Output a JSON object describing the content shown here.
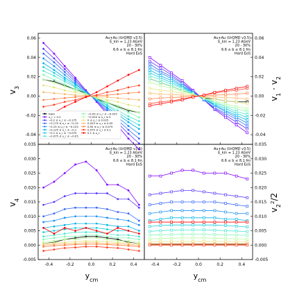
{
  "chart_data": [
    {
      "id": "v3",
      "type": "line",
      "ylabel": "v3",
      "ylabel_main": "v",
      "ylabel_sub": "3",
      "xlabel": "",
      "xlim": [
        -0.5,
        0.5
      ],
      "ylim": [
        -0.05,
        0.065
      ],
      "yticks": [
        "-0.04",
        "-0.02",
        "0.00",
        "0.02",
        "0.04",
        "0.06"
      ],
      "ytick_values": [
        -0.04,
        -0.02,
        0.0,
        0.02,
        0.04,
        0.06
      ],
      "annotation": [
        "Au+Au (UrQMD v3.5)",
        "E_kin = 1.23 AGeV",
        "20 - 30%",
        "6.6 ≤ b ≤ 8.1 fm",
        "Hard EoS"
      ],
      "grid": false
    },
    {
      "id": "v1v2",
      "type": "line",
      "ylabel": "v1 · v2",
      "ylabel_main": "v",
      "ylabel_sub": "1",
      "ylabel_mid": " · v",
      "ylabel_sub2": "2",
      "xlabel": "",
      "xlim": [
        -0.5,
        0.5
      ],
      "ylim": [
        -0.05,
        0.065
      ],
      "yticks": [
        "-0.04",
        "-0.02",
        "0.00",
        "0.02",
        "0.04",
        "0.06"
      ],
      "ytick_values": [
        -0.04,
        -0.02,
        0.0,
        0.02,
        0.04,
        0.06
      ],
      "annotation": [
        "Au+Au (UrQMD v3.5)",
        "E_kin = 1.23 AGeV",
        "20 - 30%",
        "6.6 ≤ b ≤ 8.1 fm",
        "Hard EoS"
      ],
      "grid": false
    },
    {
      "id": "v4",
      "type": "line",
      "ylabel": "v4",
      "ylabel_main": "v",
      "ylabel_sub": "4",
      "xlabel": "ycm",
      "xlabel_main": "y",
      "xlabel_sub": "cm",
      "xlim": [
        -0.5,
        0.5
      ],
      "ylim": [
        -0.005,
        0.035
      ],
      "yticks": [
        "-0.005",
        "0.000",
        "0.005",
        "0.010",
        "0.015",
        "0.020",
        "0.025",
        "0.030",
        "0.035"
      ],
      "ytick_values": [
        -0.005,
        0.0,
        0.005,
        0.01,
        0.015,
        0.02,
        0.025,
        0.03,
        0.035
      ],
      "xticks": [
        "-0.4",
        "-0.2",
        "0.0",
        "0.2",
        "0.4"
      ],
      "xtick_values": [
        -0.4,
        -0.2,
        0.0,
        0.2,
        0.4
      ],
      "annotation": [
        "Au+Au (UrQMD v3.5)",
        "E_kin = 1.23 AGeV",
        "20 - 30%",
        "6.6 ≤ b ≤ 8.1 fm",
        "Hard EoS"
      ],
      "grid": false
    },
    {
      "id": "v2sq",
      "type": "line",
      "ylabel": "v2²/2",
      "ylabel_main": "v",
      "ylabel_sub": "2",
      "ylabel_sup": "2",
      "ylabel_tail": "/2",
      "xlabel": "ycm",
      "xlabel_main": "y",
      "xlabel_sub": "cm",
      "xlim": [
        -0.5,
        0.5
      ],
      "ylim": [
        -0.005,
        0.035
      ],
      "yticks": [
        "-0.005",
        "0.000",
        "0.005",
        "0.010",
        "0.015",
        "0.020",
        "0.025",
        "0.030",
        "0.035"
      ],
      "ytick_values": [
        -0.005,
        0.0,
        0.005,
        0.01,
        0.015,
        0.02,
        0.025,
        0.03,
        0.035
      ],
      "xticks": [
        "-0.4",
        "-0.2",
        "0.0",
        "0.2",
        "0.4"
      ],
      "xtick_values": [
        -0.4,
        -0.2,
        0.0,
        0.2,
        0.4
      ],
      "annotation": [
        "Au+Au (UrQMD v3.5)",
        "E_kin = 1.23 AGeV",
        "20 - 30%",
        "6.6 ≤ b ≤ 8.1 fm",
        "Hard EoS"
      ],
      "grid": false
    }
  ],
  "x_values": [
    -0.45,
    -0.35,
    -0.25,
    -0.15,
    -0.05,
    0.05,
    0.15,
    0.25,
    0.35,
    0.45
  ],
  "series": [
    {
      "name": "total",
      "color": "#000000",
      "v3": [
        0.017,
        0.015,
        0.011,
        0.007,
        0.003,
        -0.003,
        -0.007,
        -0.011,
        -0.015,
        -0.017
      ],
      "v1v2": [
        0.018,
        0.014,
        0.01,
        0.006,
        0.002,
        -0.002,
        -0.003,
        -0.005,
        -0.006,
        -0.006
      ],
      "v4": [
        0.0005,
        0.001,
        0.002,
        0.0025,
        0.003,
        0.003,
        0.0025,
        0.002,
        0.001,
        0.0005
      ],
      "v2sq": [
        0.0003,
        0.0003,
        0.0003,
        0.0003,
        0.0003,
        0.0003,
        0.0003,
        0.0003,
        0.0003,
        0.0003
      ]
    },
    {
      "name": "u_r = 0.2",
      "color": "#8000ff",
      "v3": [
        0.055,
        0.044,
        0.031,
        0.019,
        0.006,
        -0.006,
        -0.019,
        -0.031,
        -0.044,
        -0.055
      ],
      "v1v2": [
        0.04,
        0.032,
        0.024,
        0.016,
        0.006,
        -0.004,
        -0.014,
        -0.022,
        -0.03,
        -0.038
      ],
      "v4": [
        0.02,
        0.022,
        0.025,
        0.028,
        0.029,
        0.026,
        0.021,
        0.021,
        0.019,
        0.014
      ],
      "v2sq": [
        0.024,
        0.024,
        0.025,
        0.026,
        0.026,
        0.025,
        0.025,
        0.025,
        0.024,
        0.023
      ]
    },
    {
      "name": "−0.2 ≤ u_r ≤ −0.175",
      "color": "#5a35fd",
      "v3": [
        0.049,
        0.039,
        0.028,
        0.017,
        0.005,
        -0.005,
        -0.017,
        -0.028,
        -0.039,
        -0.049
      ],
      "v1v2": [
        0.036,
        0.029,
        0.022,
        0.014,
        0.005,
        -0.004,
        -0.013,
        -0.02,
        -0.027,
        -0.034
      ],
      "v4": [
        0.014,
        0.015,
        0.017,
        0.018,
        0.018,
        0.018,
        0.018,
        0.016,
        0.016,
        0.013
      ],
      "v2sq": [
        0.0175,
        0.018,
        0.0185,
        0.019,
        0.019,
        0.0185,
        0.018,
        0.0175,
        0.017,
        0.0165
      ]
    },
    {
      "name": "−0.175 ≤ u_r ≤ −0.15",
      "color": "#3465f9",
      "v3": [
        0.044,
        0.035,
        0.025,
        0.015,
        0.005,
        -0.005,
        -0.015,
        -0.025,
        -0.035,
        -0.044
      ],
      "v1v2": [
        0.033,
        0.026,
        0.02,
        0.013,
        0.004,
        -0.004,
        -0.012,
        -0.018,
        -0.024,
        -0.031
      ],
      "v4": [
        0.01,
        0.011,
        0.0125,
        0.013,
        0.013,
        0.013,
        0.0125,
        0.0115,
        0.011,
        0.0085
      ],
      "v2sq": [
        0.014,
        0.0145,
        0.015,
        0.015,
        0.015,
        0.015,
        0.015,
        0.0145,
        0.014,
        0.0135
      ]
    },
    {
      "name": "−0.15 ≤ u_r ≤ −0.125",
      "color": "#1c8ef3",
      "v3": [
        0.039,
        0.031,
        0.022,
        0.013,
        0.004,
        -0.004,
        -0.013,
        -0.022,
        -0.031,
        -0.039
      ],
      "v1v2": [
        0.03,
        0.024,
        0.018,
        0.011,
        0.004,
        -0.003,
        -0.01,
        -0.016,
        -0.022,
        -0.028
      ],
      "v4": [
        0.008,
        0.0085,
        0.0095,
        0.01,
        0.01,
        0.01,
        0.0095,
        0.009,
        0.0085,
        0.007
      ],
      "v2sq": [
        0.011,
        0.0115,
        0.012,
        0.012,
        0.012,
        0.012,
        0.012,
        0.0115,
        0.011,
        0.011
      ]
    },
    {
      "name": "−0.125 ≤ u_r ≤ −0.1",
      "color": "#04b3e9",
      "v3": [
        0.034,
        0.027,
        0.019,
        0.012,
        0.004,
        -0.004,
        -0.012,
        -0.019,
        -0.027,
        -0.034
      ],
      "v1v2": [
        0.027,
        0.021,
        0.016,
        0.01,
        0.003,
        -0.003,
        -0.009,
        -0.015,
        -0.02,
        -0.025
      ],
      "v4": [
        0.006,
        0.0065,
        0.007,
        0.0075,
        0.0075,
        0.0075,
        0.007,
        0.0065,
        0.0065,
        0.005
      ],
      "v2sq": [
        0.0085,
        0.009,
        0.0095,
        0.0095,
        0.0095,
        0.0095,
        0.0095,
        0.009,
        0.009,
        0.0085
      ]
    },
    {
      "name": "−0.1 ≤ u_r ≤ −0.075",
      "color": "#18cde0",
      "v3": [
        0.03,
        0.024,
        0.017,
        0.01,
        0.003,
        -0.003,
        -0.01,
        -0.017,
        -0.024,
        -0.03
      ],
      "v1v2": [
        0.024,
        0.019,
        0.014,
        0.009,
        0.003,
        -0.003,
        -0.008,
        -0.013,
        -0.018,
        -0.022
      ],
      "v4": [
        0.0045,
        0.005,
        0.0055,
        0.006,
        0.006,
        0.006,
        0.0055,
        0.005,
        0.005,
        0.004
      ],
      "v2sq": [
        0.0065,
        0.0068,
        0.007,
        0.007,
        0.007,
        0.007,
        0.007,
        0.0068,
        0.0066,
        0.0063
      ]
    },
    {
      "name": "−0.075 ≤ u_r ≤ −0.05",
      "color": "#4ce4cf",
      "v3": [
        0.026,
        0.021,
        0.015,
        0.009,
        0.003,
        -0.003,
        -0.009,
        -0.015,
        -0.021,
        -0.026
      ],
      "v1v2": [
        0.021,
        0.017,
        0.012,
        0.008,
        0.002,
        -0.002,
        -0.007,
        -0.011,
        -0.016,
        -0.019
      ],
      "v4": [
        0.003,
        0.0035,
        0.004,
        0.0045,
        0.0045,
        0.0045,
        0.004,
        0.0035,
        0.0035,
        0.003
      ],
      "v2sq": [
        0.0048,
        0.005,
        0.0052,
        0.0053,
        0.0053,
        0.0053,
        0.0052,
        0.005,
        0.0049,
        0.0047
      ]
    },
    {
      "name": "−0.05 ≤ u_r ≤ −0.025",
      "color": "#80f8b6",
      "v3": [
        0.022,
        0.017,
        0.012,
        0.007,
        0.002,
        -0.002,
        -0.007,
        -0.012,
        -0.017,
        -0.022
      ],
      "v1v2": [
        0.018,
        0.014,
        0.01,
        0.006,
        0.002,
        -0.002,
        -0.006,
        -0.01,
        -0.013,
        -0.016
      ],
      "v4": [
        0.002,
        0.0025,
        0.003,
        0.003,
        0.0035,
        0.0035,
        0.003,
        0.0025,
        0.0025,
        0.002
      ],
      "v2sq": [
        0.0035,
        0.0036,
        0.0037,
        0.0038,
        0.0038,
        0.0038,
        0.0037,
        0.0036,
        0.0035,
        0.0034
      ]
    },
    {
      "name": "−0.025 ≤ u_r ≤ 0",
      "color": "#b4fd9a",
      "v3": [
        0.017,
        0.014,
        0.01,
        0.006,
        0.002,
        -0.002,
        -0.006,
        -0.01,
        -0.014,
        -0.017
      ],
      "v1v2": [
        0.014,
        0.011,
        0.008,
        0.005,
        0.002,
        -0.002,
        -0.005,
        -0.008,
        -0.011,
        -0.013
      ],
      "v4": [
        0.001,
        0.0015,
        0.002,
        0.002,
        0.0025,
        0.0025,
        0.002,
        0.0015,
        0.0015,
        0.001
      ],
      "v2sq": [
        0.0022,
        0.0023,
        0.0024,
        0.0025,
        0.0025,
        0.0025,
        0.0024,
        0.0023,
        0.0022,
        0.0021
      ]
    },
    {
      "name": "0 ≤ u_r ≤ 0.025",
      "color": "#e2e47c",
      "v3": [
        0.011,
        0.009,
        0.006,
        0.004,
        0.001,
        -0.001,
        -0.004,
        -0.006,
        -0.009,
        -0.011
      ],
      "v1v2": [
        0.008,
        0.006,
        0.005,
        0.003,
        0.001,
        -0.001,
        -0.003,
        -0.005,
        -0.006,
        -0.008
      ],
      "v4": [
        0.0005,
        0.0008,
        0.001,
        0.0012,
        0.0014,
        0.0014,
        0.0012,
        0.001,
        0.0008,
        0.0005
      ],
      "v2sq": [
        0.0012,
        0.0012,
        0.0013,
        0.0013,
        0.0013,
        0.0013,
        0.0013,
        0.0012,
        0.0012,
        0.0012
      ]
    },
    {
      "name": "0.025 ≤ u_r ≤ 0.05",
      "color": "#ffb360",
      "v3": [
        0.004,
        0.003,
        0.002,
        0.001,
        0.0005,
        -0.0005,
        -0.001,
        -0.002,
        -0.003,
        -0.004
      ],
      "v1v2": [
        0.003,
        0.002,
        0.0015,
        0.001,
        0.0003,
        -0.0003,
        -0.001,
        -0.0015,
        -0.002,
        -0.003
      ],
      "v4": [
        0.0,
        0.0003,
        0.0005,
        0.0006,
        0.0008,
        0.0008,
        0.0006,
        0.0005,
        0.0003,
        0.0
      ],
      "v2sq": [
        0.0005,
        0.0005,
        0.0005,
        0.0005,
        0.0005,
        0.0005,
        0.0005,
        0.0005,
        0.0005,
        0.0005
      ]
    },
    {
      "name": "0.05 ≤ u_r ≤ 0.075",
      "color": "#ff7e41",
      "v3": [
        -0.004,
        -0.003,
        -0.002,
        -0.001,
        -0.0005,
        0.0005,
        0.001,
        0.002,
        0.003,
        0.004
      ],
      "v1v2": [
        -0.003,
        -0.002,
        -0.0015,
        -0.001,
        -0.0003,
        0.0003,
        0.001,
        0.0015,
        0.002,
        0.003
      ],
      "v4": [
        -0.0005,
        -0.0002,
        0.0,
        0.0002,
        0.0003,
        0.0003,
        0.0002,
        0.0,
        -0.0002,
        -0.0005
      ],
      "v2sq": [
        0.0001,
        0.0001,
        0.0001,
        0.0001,
        0.0001,
        0.0001,
        0.0001,
        0.0001,
        0.0001,
        0.0001
      ]
    },
    {
      "name": "0.075 ≤ u_r ≤ 0.1",
      "color": "#ff4121",
      "v3": [
        -0.011,
        -0.009,
        -0.006,
        -0.004,
        -0.001,
        0.001,
        0.004,
        0.006,
        0.009,
        0.011
      ],
      "v1v2": [
        -0.008,
        -0.006,
        -0.005,
        -0.003,
        -0.001,
        0.001,
        0.003,
        0.005,
        0.006,
        0.008
      ],
      "v4": [
        -0.002,
        -0.0015,
        -0.001,
        -0.0008,
        -0.0005,
        -0.0005,
        -0.0008,
        -0.001,
        -0.0015,
        -0.002
      ],
      "v2sq": [
        0.0,
        0.0,
        0.0,
        0.0,
        0.0,
        0.0,
        0.0,
        0.0,
        0.0,
        0.0
      ]
    },
    {
      "name": "0.1 ≤ u_r",
      "color": "#ff0000",
      "v3": [
        -0.022,
        -0.017,
        -0.011,
        -0.006,
        -0.001,
        0.004,
        0.01,
        0.016,
        0.022,
        0.027
      ],
      "v1v2": [
        -0.01,
        -0.008,
        -0.006,
        -0.004,
        -0.001,
        0.001,
        0.004,
        0.006,
        0.008,
        0.01
      ],
      "v4": [
        0.006,
        0.004,
        0.006,
        0.005,
        0.006,
        0.005,
        0.004,
        0.006,
        0.005,
        0.004
      ],
      "v2sq": [
        0.008,
        0.008,
        0.008,
        0.008,
        0.008,
        0.008,
        0.008,
        0.008,
        0.008,
        0.008
      ]
    }
  ]
}
